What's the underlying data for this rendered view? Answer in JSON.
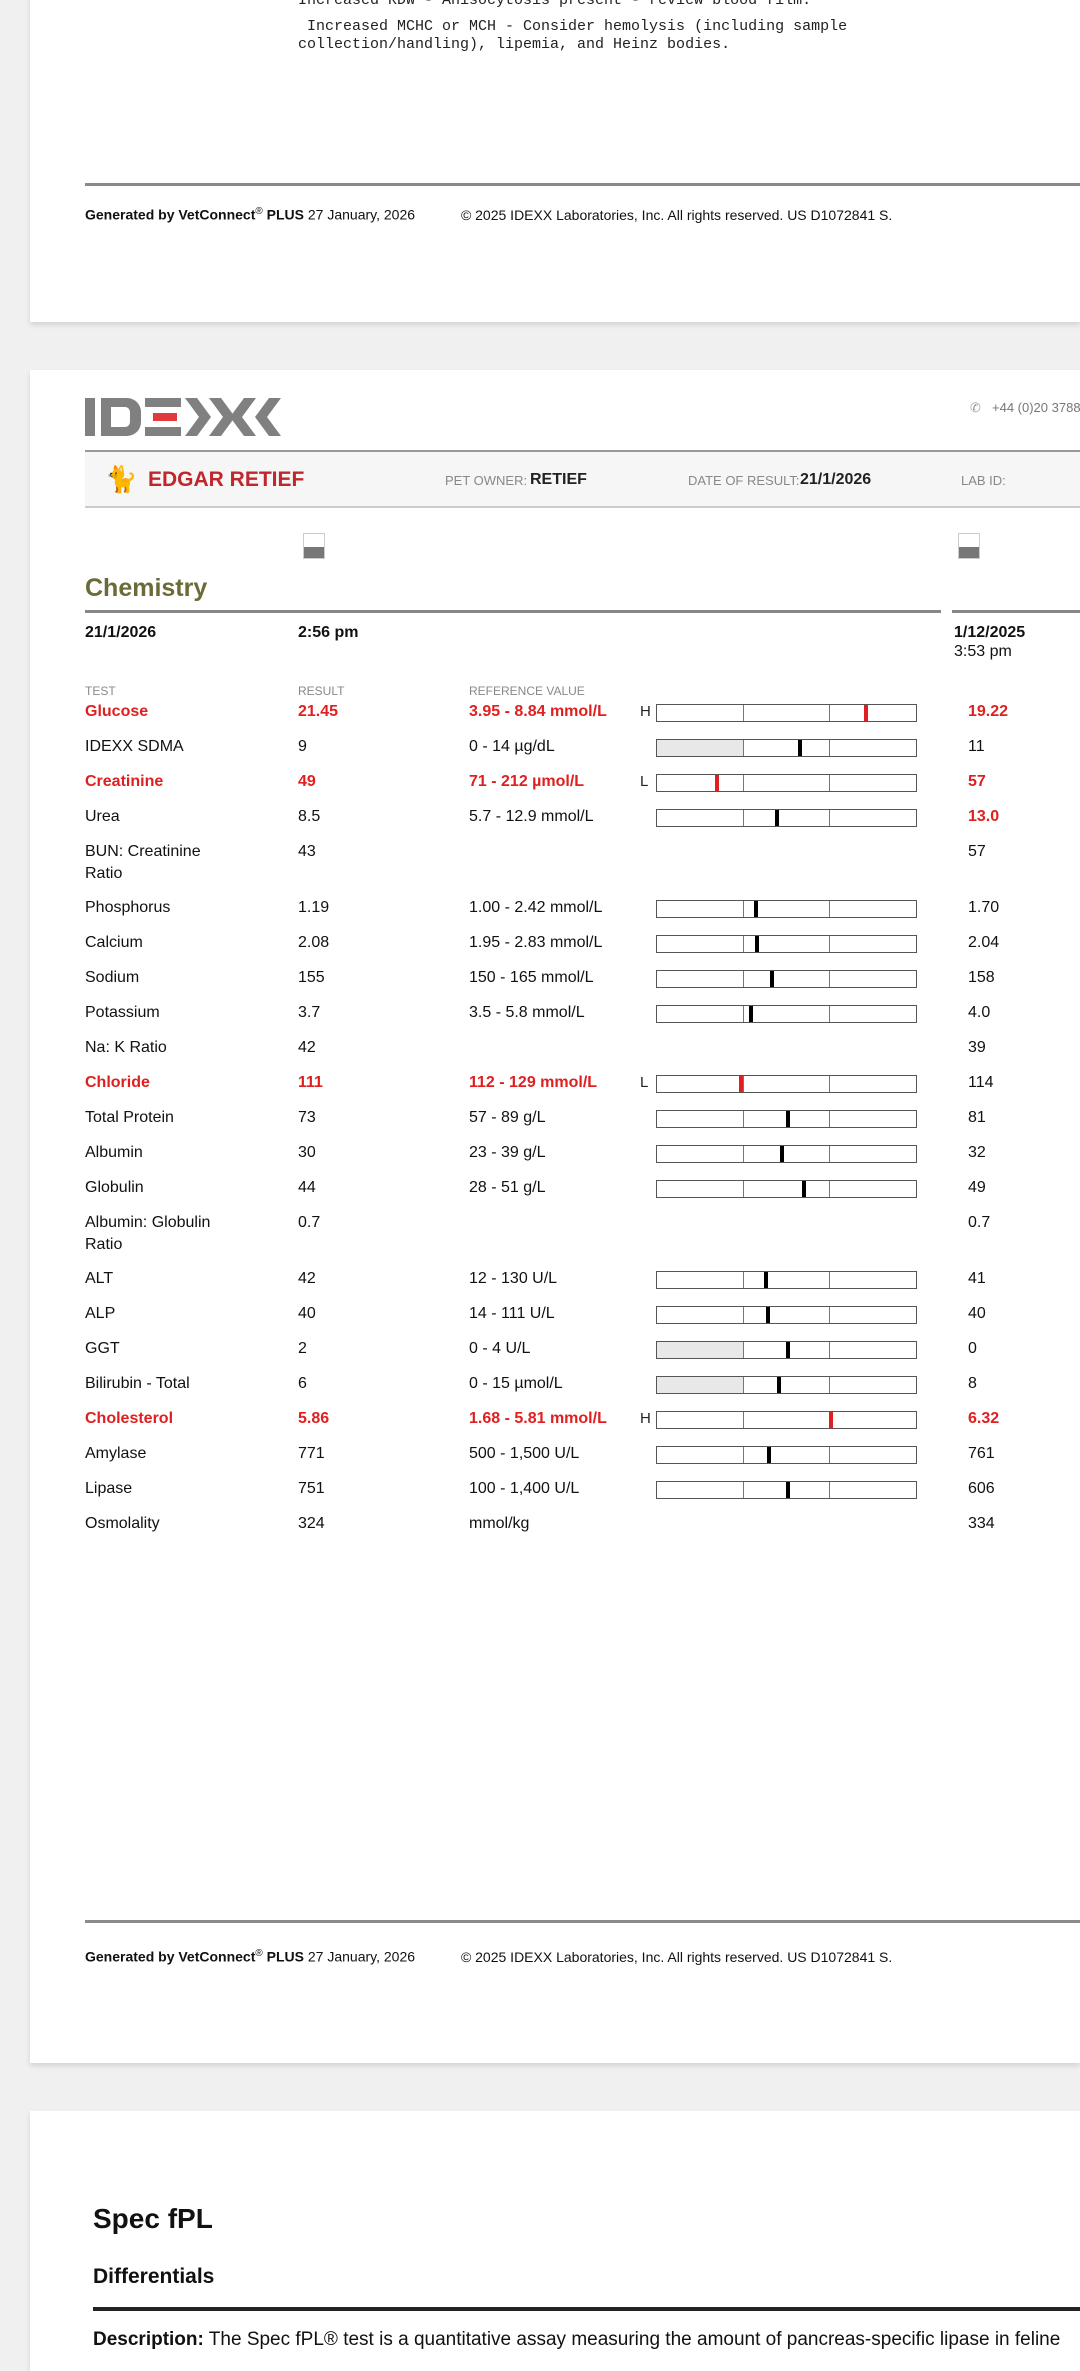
{
  "page1": {
    "note_partial": "Increased RDW - Anisocytosis present - review blood film.",
    "note_line1": " Increased MCHC or MCH - Consider hemolysis (including sample",
    "note_line2": "collection/handling), lipemia, and Heinz bodies.",
    "footer": {
      "generated": "Generated by VetConnect",
      "reg": "®",
      "plus": "PLUS",
      "date": "27 January, 2026",
      "copyright": "© 2025 IDEXX Laboratories, Inc. All rights reserved. US D1072841 S."
    }
  },
  "page2": {
    "logo": "IDEXX",
    "phone": "+44 (0)20 3788",
    "patient": {
      "name": "EDGAR RETIEF",
      "owner_label": "PET OWNER:",
      "owner": "RETIEF",
      "date_label": "DATE OF RESULT:",
      "date": "21/1/2026",
      "lab_label": "LAB ID:"
    },
    "section": {
      "title": "Chemistry",
      "date": "21/1/2026",
      "time": "2:56 pm",
      "prev_date": "1/12/2025",
      "prev_time": "3:53 pm"
    },
    "columns": {
      "test": "TEST",
      "result": "RESULT",
      "reference": "REFERENCE VALUE"
    },
    "rows": [
      {
        "test": "Glucose",
        "result": "21.45",
        "ref": "3.95 - 8.84 mmol/L",
        "flag": "H",
        "abnormal": true,
        "marker": 0.81,
        "prev": "19.22",
        "prev_abnormal": true
      },
      {
        "test": "IDEXX SDMA",
        "result": "9",
        "ref": "0 - 14 µg/dL",
        "flag": "",
        "marker": 0.555,
        "shaded": true,
        "prev": "11"
      },
      {
        "test": "Creatinine",
        "result": "49",
        "ref": "71 - 212 µmol/L",
        "flag": "L",
        "abnormal": true,
        "marker": 0.234,
        "prev": "57",
        "prev_abnormal": true
      },
      {
        "test": "Urea",
        "result": "8.5",
        "ref": "5.7 - 12.9 mmol/L",
        "flag": "",
        "marker": 0.463,
        "prev": "13.0",
        "prev_abnormal": true
      },
      {
        "test": "BUN: Creatinine Ratio",
        "result": "43",
        "ref": "",
        "prev": "57",
        "tall": true
      },
      {
        "test": "Phosphorus",
        "result": "1.19",
        "ref": "1.00 - 2.42 mmol/L",
        "marker": 0.383,
        "prev": "1.70"
      },
      {
        "test": "Calcium",
        "result": "2.08",
        "ref": "1.95 - 2.83 mmol/L",
        "marker": 0.389,
        "prev": "2.04"
      },
      {
        "test": "Sodium",
        "result": "155",
        "ref": "150 - 165 mmol/L",
        "marker": 0.446,
        "prev": "158"
      },
      {
        "test": "Potassium",
        "result": "3.7",
        "ref": "3.5 - 5.8 mmol/L",
        "marker": 0.366,
        "prev": "4.0"
      },
      {
        "test": "Na: K Ratio",
        "result": "42",
        "ref": "",
        "prev": "39"
      },
      {
        "test": "Chloride",
        "result": "111",
        "ref": "112 - 129 mmol/L",
        "flag": "L",
        "abnormal": true,
        "marker": 0.326,
        "prev": "114"
      },
      {
        "test": "Total Protein",
        "result": "73",
        "ref": "57 - 89 g/L",
        "marker": 0.509,
        "prev": "81"
      },
      {
        "test": "Albumin",
        "result": "30",
        "ref": "23 - 39 g/L",
        "marker": 0.486,
        "prev": "32"
      },
      {
        "test": "Globulin",
        "result": "44",
        "ref": "28 - 51 g/L",
        "marker": 0.571,
        "prev": "49"
      },
      {
        "test": "Albumin: Globulin Ratio",
        "result": "0.7",
        "ref": "",
        "prev": "0.7",
        "tall": true
      },
      {
        "test": "ALT",
        "result": "42",
        "ref": "12 - 130 U/L",
        "marker": 0.423,
        "prev": "41"
      },
      {
        "test": "ALP",
        "result": "40",
        "ref": "14 - 111 U/L",
        "marker": 0.429,
        "prev": "40"
      },
      {
        "test": "GGT",
        "result": "2",
        "ref": "0 - 4 U/L",
        "marker": 0.509,
        "shaded": true,
        "prev": "0"
      },
      {
        "test": "Bilirubin - Total",
        "result": "6",
        "ref": "0 - 15 µmol/L",
        "marker": 0.474,
        "shaded": true,
        "prev": "8"
      },
      {
        "test": "Cholesterol",
        "result": "5.86",
        "ref": "1.68 - 5.81 mmol/L",
        "flag": "H",
        "abnormal": true,
        "marker": 0.674,
        "prev": "6.32",
        "prev_abnormal": true
      },
      {
        "test": "Amylase",
        "result": "771",
        "ref": "500 - 1,500 U/L",
        "marker": 0.434,
        "prev": "761"
      },
      {
        "test": "Lipase",
        "result": "751",
        "ref": "100 - 1,400 U/L",
        "marker": 0.509,
        "prev": "606"
      },
      {
        "test": "Osmolality",
        "result": "324",
        "ref": "mmol/kg",
        "prev": "334"
      }
    ],
    "footer": {
      "generated": "Generated by VetConnect",
      "reg": "®",
      "plus": "PLUS",
      "date": "27 January, 2026",
      "copyright": "© 2025 IDEXX Laboratories, Inc. All rights reserved. US D1072841 S."
    }
  },
  "page3": {
    "title": "Spec fPL",
    "subtitle": "Differentials",
    "desc_label": "Description:",
    "desc": "The Spec fPL® test is a quantitative assay measuring the amount of pancreas-specific lipase in feline"
  },
  "colors": {
    "abnormal": "#e02020",
    "section_title": "#6b6b3a",
    "patient_name": "#c0272d"
  }
}
